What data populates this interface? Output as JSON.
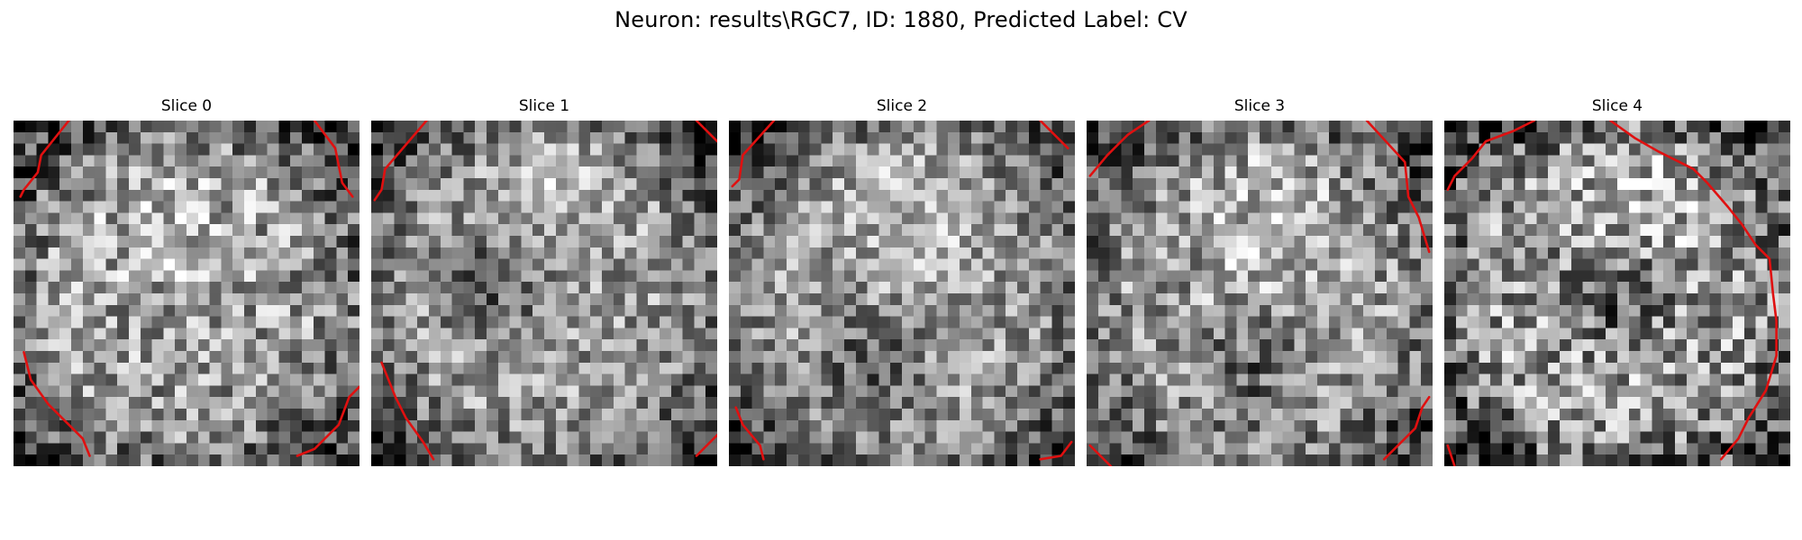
{
  "figure": {
    "title": "Neuron: results\\RGC7, ID: 1880, Predicted Label: CV"
  },
  "slices": [
    {
      "label": "Slice 0",
      "seed": 11,
      "texture": {
        "bright_cx": 0.45,
        "bright_cy": 0.35,
        "dark_cx": 0.5,
        "dark_cy": 0.6,
        "dark_strength": 0.05,
        "contrast": 0.35
      },
      "contour_color": "#e01010",
      "contours": [
        [
          [
            0.16,
            0.0
          ],
          [
            0.08,
            0.1
          ],
          [
            0.07,
            0.15
          ],
          [
            0.03,
            0.2
          ],
          [
            0.02,
            0.22
          ]
        ],
        [
          [
            0.87,
            0.0
          ],
          [
            0.93,
            0.08
          ],
          [
            0.95,
            0.18
          ],
          [
            0.98,
            0.22
          ]
        ],
        [
          [
            0.03,
            0.67
          ],
          [
            0.05,
            0.75
          ],
          [
            0.1,
            0.82
          ],
          [
            0.2,
            0.92
          ],
          [
            0.22,
            0.97
          ]
        ],
        [
          [
            1.0,
            0.77
          ],
          [
            0.97,
            0.8
          ],
          [
            0.94,
            0.88
          ],
          [
            0.87,
            0.95
          ],
          [
            0.82,
            0.97
          ]
        ]
      ]
    },
    {
      "label": "Slice 1",
      "seed": 23,
      "texture": {
        "bright_cx": 0.55,
        "bright_cy": 0.18,
        "dark_cx": 0.35,
        "dark_cy": 0.47,
        "dark_strength": 0.3,
        "contrast": 0.3
      },
      "contour_color": "#e01010",
      "contours": [
        [
          [
            0.16,
            0.0
          ],
          [
            0.04,
            0.14
          ],
          [
            0.03,
            0.2
          ],
          [
            0.01,
            0.23
          ]
        ],
        [
          [
            0.94,
            0.0
          ],
          [
            1.0,
            0.06
          ]
        ],
        [
          [
            0.03,
            0.7
          ],
          [
            0.07,
            0.8
          ],
          [
            0.1,
            0.86
          ],
          [
            0.15,
            0.93
          ],
          [
            0.18,
            0.98
          ]
        ],
        [
          [
            1.0,
            0.91
          ],
          [
            0.94,
            0.97
          ]
        ]
      ]
    },
    {
      "label": "Slice 2",
      "seed": 37,
      "texture": {
        "bright_cx": 0.55,
        "bright_cy": 0.25,
        "dark_cx": 0.42,
        "dark_cy": 0.72,
        "dark_strength": 0.35,
        "contrast": 0.3
      },
      "contour_color": "#e01010",
      "contours": [
        [
          [
            0.13,
            0.0
          ],
          [
            0.04,
            0.1
          ],
          [
            0.03,
            0.17
          ],
          [
            0.01,
            0.19
          ]
        ],
        [
          [
            0.9,
            0.0
          ],
          [
            0.98,
            0.08
          ]
        ],
        [
          [
            0.02,
            0.83
          ],
          [
            0.04,
            0.88
          ],
          [
            0.09,
            0.94
          ],
          [
            0.1,
            0.98
          ]
        ],
        [
          [
            0.99,
            0.93
          ],
          [
            0.96,
            0.97
          ],
          [
            0.9,
            0.98
          ]
        ]
      ]
    },
    {
      "label": "Slice 3",
      "seed": 51,
      "texture": {
        "bright_cx": 0.5,
        "bright_cy": 0.3,
        "dark_cx": 0.45,
        "dark_cy": 0.72,
        "dark_strength": 0.28,
        "contrast": 0.33
      },
      "contour_color": "#e01010",
      "contours": [
        [
          [
            0.18,
            0.0
          ],
          [
            0.12,
            0.04
          ],
          [
            0.1,
            0.06
          ],
          [
            0.06,
            0.1
          ],
          [
            0.01,
            0.16
          ]
        ],
        [
          [
            0.81,
            0.0
          ],
          [
            0.92,
            0.12
          ],
          [
            0.93,
            0.22
          ],
          [
            0.96,
            0.28
          ],
          [
            0.99,
            0.38
          ]
        ],
        [
          [
            0.99,
            0.8
          ],
          [
            0.97,
            0.83
          ],
          [
            0.95,
            0.89
          ],
          [
            0.86,
            0.98
          ]
        ],
        [
          [
            0.01,
            0.94
          ],
          [
            0.07,
            1.0
          ]
        ]
      ]
    },
    {
      "label": "Slice 4",
      "seed": 67,
      "texture": {
        "bright_cx": 0.6,
        "bright_cy": 0.25,
        "dark_cx": 0.5,
        "dark_cy": 0.5,
        "dark_strength": 0.3,
        "contrast": 0.38
      },
      "contour_color": "#e01010",
      "contours": [
        [
          [
            0.26,
            0.0
          ],
          [
            0.2,
            0.03
          ],
          [
            0.12,
            0.06
          ],
          [
            0.08,
            0.11
          ],
          [
            0.03,
            0.16
          ],
          [
            0.01,
            0.2
          ]
        ],
        [
          [
            0.48,
            0.0
          ],
          [
            0.55,
            0.05
          ],
          [
            0.62,
            0.09
          ],
          [
            0.68,
            0.12
          ],
          [
            0.72,
            0.14
          ],
          [
            0.76,
            0.18
          ],
          [
            0.82,
            0.25
          ],
          [
            0.86,
            0.3
          ],
          [
            0.9,
            0.36
          ],
          [
            0.94,
            0.4
          ],
          [
            0.95,
            0.5
          ],
          [
            0.96,
            0.58
          ],
          [
            0.96,
            0.68
          ],
          [
            0.93,
            0.78
          ],
          [
            0.88,
            0.86
          ],
          [
            0.85,
            0.92
          ],
          [
            0.8,
            0.98
          ]
        ],
        [
          [
            0.01,
            0.94
          ],
          [
            0.03,
            1.0
          ]
        ]
      ]
    }
  ]
}
